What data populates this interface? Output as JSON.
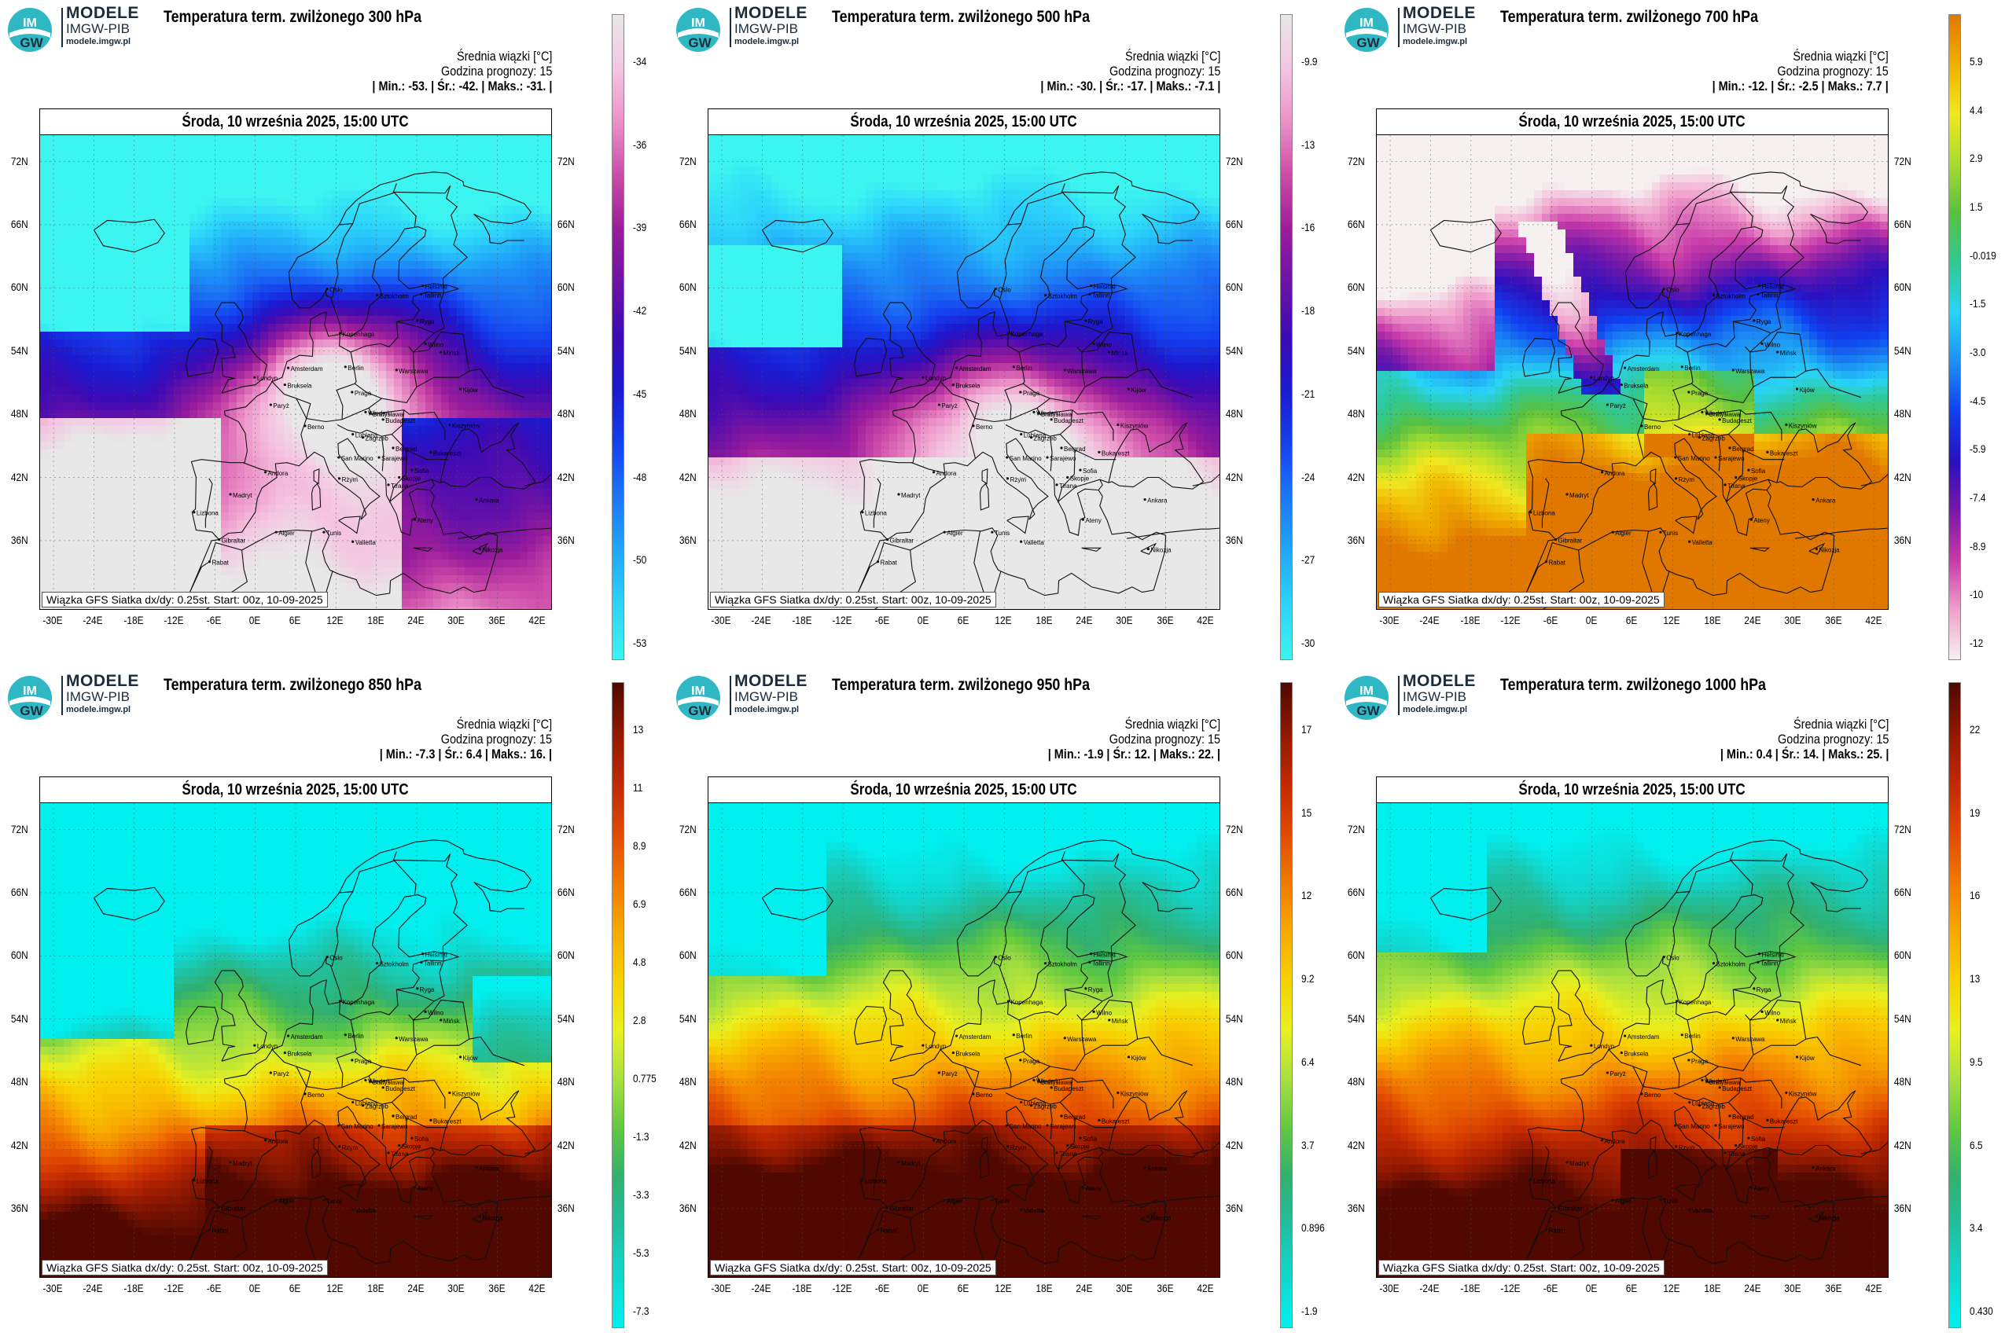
{
  "brand": {
    "line1": "MODELE",
    "line2": "IMGW-PIB",
    "line3": "modele.imgw.pl",
    "logo_text_top": "IM",
    "logo_text_bottom": "GW"
  },
  "common": {
    "avg_label": "Średnia wiązki [°C]",
    "forecast_hour_label": "Godzina prognozy: 15",
    "date_header": "Środa, 10 września 2025, 15:00 UTC",
    "footer": "Wiązka GFS Siatka dx/dy: 0.25st. Start: 00z, 10-09-2025",
    "lat_labels": [
      "72N",
      "66N",
      "60N",
      "54N",
      "48N",
      "42N",
      "36N"
    ],
    "lon_labels": [
      "-30E",
      "-24E",
      "-18E",
      "-12E",
      "-6E",
      "0E",
      "6E",
      "12E",
      "18E",
      "24E",
      "30E",
      "36E",
      "42E"
    ],
    "cities": [
      "Oslo",
      "Helsinki",
      "Sztokholm",
      "Tallinn",
      "Ryga",
      "Kopenhaga",
      "Wilno",
      "Mińsk",
      "Amsterdam",
      "Berlin",
      "Warszawa",
      "Londyn",
      "Bruksela",
      "Praga",
      "Kijów",
      "Paryż",
      "Wiedeń",
      "Bratysława",
      "Kiszyniów",
      "Berno",
      "Lublana",
      "Budapeszt",
      "Zagrzeb",
      "Belgrad",
      "Bukareszt",
      "Andora",
      "San Marino",
      "Sarajewo",
      "Sofia",
      "Madryt",
      "Rzym",
      "Skopje",
      "Lizbona",
      "Tirana",
      "Ankara",
      "Ateny",
      "Gibraltar",
      "Algier",
      "Tunis",
      "Valletta",
      "Rabat",
      "Nikozja"
    ]
  },
  "colors": {
    "cool_scale": [
      "#e8e8e8",
      "#f4c6e0",
      "#ec90c8",
      "#cc4aa8",
      "#9a1c9c",
      "#6c12a6",
      "#3c0ab4",
      "#1a1ad0",
      "#1442f0",
      "#1c78f4",
      "#20a8f8",
      "#2cd4fa",
      "#3cf4f0"
    ],
    "warm_scale": [
      "#00f0f0",
      "#10d8d0",
      "#20c0a0",
      "#30b070",
      "#60c840",
      "#a8e040",
      "#e8f020",
      "#f8d000",
      "#f8a800",
      "#f07800",
      "#e04800",
      "#c02800",
      "#901800",
      "#500800"
    ]
  },
  "panels": [
    {
      "id": "p300",
      "title": "Temperatura term. zwilżonego 300 hPa",
      "min": "-53.",
      "mean": "-42.",
      "max": "-31.",
      "colorbar_labels": [
        "-34",
        "-36",
        "-39",
        "-42",
        "-45",
        "-48",
        "-50",
        "-53"
      ],
      "scale": "cool",
      "variant": "cold300"
    },
    {
      "id": "p500",
      "title": "Temperatura term. zwilżonego 500 hPa",
      "min": "-30.",
      "mean": "-17.",
      "max": "-7.1",
      "colorbar_labels": [
        "-9.9",
        "-13",
        "-16",
        "-18",
        "-21",
        "-24",
        "-27",
        "-30"
      ],
      "scale": "cool",
      "variant": "cold500"
    },
    {
      "id": "p700",
      "title": "Temperatura term. zwilżonego 700 hPa",
      "min": "-12.",
      "mean": "-2.5",
      "max": "7.7",
      "colorbar_labels": [
        "5.9",
        "4.4",
        "2.9",
        "1.5",
        "-0.019",
        "-1.5",
        "-3.0",
        "-4.5",
        "-5.9",
        "-7.4",
        "-8.9",
        "-10",
        "-12"
      ],
      "scale": "mixed",
      "variant": "mid700"
    },
    {
      "id": "p850",
      "title": "Temperatura term. zwilżonego 850 hPa",
      "min": "-7.3",
      "mean": "6.4",
      "max": "16.",
      "colorbar_labels": [
        "13",
        "11",
        "8.9",
        "6.9",
        "4.8",
        "2.8",
        "0.775",
        "-1.3",
        "-3.3",
        "-5.3",
        "-7.3"
      ],
      "scale": "warm850",
      "variant": "warm850"
    },
    {
      "id": "p950",
      "title": "Temperatura term. zwilżonego 950 hPa",
      "min": "-1.9",
      "mean": "12.",
      "max": "22.",
      "colorbar_labels": [
        "17",
        "15",
        "12",
        "9.2",
        "6.4",
        "3.7",
        "0.896",
        "-1.9"
      ],
      "scale": "warm",
      "variant": "warm950"
    },
    {
      "id": "p1000",
      "title": "Temperatura term. zwilżonego 1000 hPa",
      "min": "0.4",
      "mean": "14.",
      "max": "25.",
      "colorbar_labels": [
        "22",
        "19",
        "16",
        "13",
        "9.5",
        "6.5",
        "3.4",
        "0.430"
      ],
      "scale": "warm",
      "variant": "warm1000"
    }
  ]
}
